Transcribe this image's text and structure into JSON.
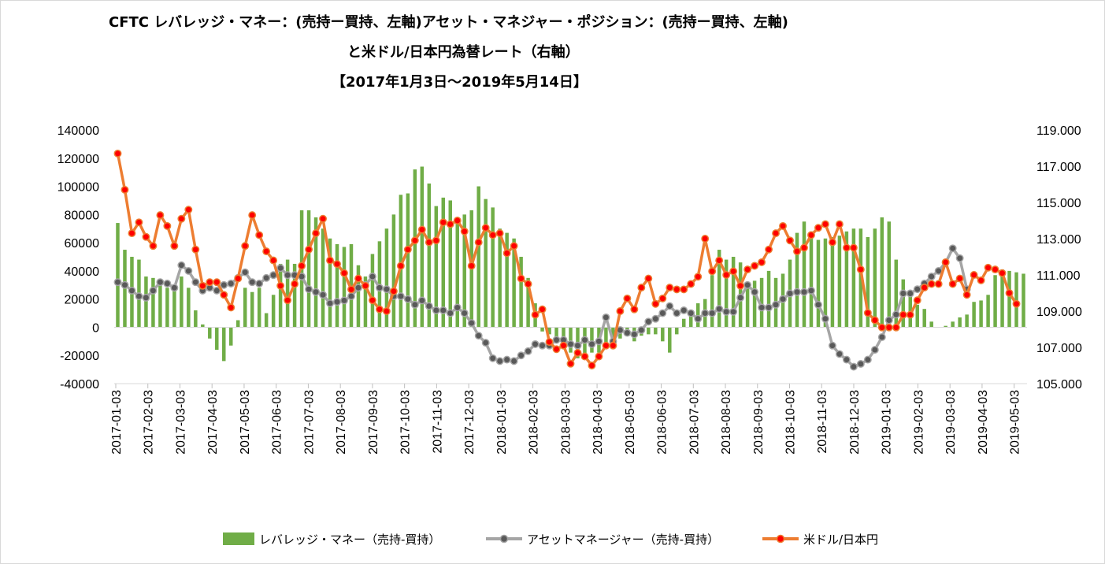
{
  "title": {
    "line1": "CFTC  レバレッジ・マネー：(売持ー買持、左軸)アセット・マネジャー・ポジション：(売持ー買持、左軸)",
    "line2": "と米ドル/日本円為替レート（右軸）",
    "line3": "【2017年1月3日～2019年5月14日】"
  },
  "legend": {
    "bars": "レバレッジ・マネー（売持-買持）",
    "gray": "アセットマネージャー（売持-買持）",
    "orange": "米ドル/日本円"
  },
  "colors": {
    "bars": "#70ad47",
    "gray_line": "#a5a5a5",
    "gray_marker": "#595959",
    "orange_line": "#ed7d31",
    "orange_marker": "#ff0000",
    "grid": "#d9d9d9"
  },
  "chart_data": {
    "type": "bar+line",
    "x_ticks": [
      "2017-01-03",
      "2017-02-03",
      "2017-03-03",
      "2017-04-03",
      "2017-05-03",
      "2017-06-03",
      "2017-07-03",
      "2017-08-03",
      "2017-09-03",
      "2017-10-03",
      "2017-11-03",
      "2017-12-03",
      "2018-01-03",
      "2018-02-03",
      "2018-03-03",
      "2018-04-03",
      "2018-05-03",
      "2018-06-03",
      "2018-07-03",
      "2018-08-03",
      "2018-09-03",
      "2018-10-03",
      "2018-11-03",
      "2018-12-03",
      "2019-01-03",
      "2019-02-03",
      "2019-03-03",
      "2019-04-03",
      "2019-05-03"
    ],
    "y_left": {
      "min": -40000,
      "max": 140000,
      "step": 20000
    },
    "y_right": {
      "min": 105,
      "max": 119,
      "step": 2,
      "labels": [
        "105.000",
        "107.000",
        "109.000",
        "111.000",
        "113.000",
        "115.000",
        "117.000",
        "119.000"
      ]
    },
    "series": [
      {
        "name": "レバレッジ・マネー（売持-買持）",
        "type": "bar",
        "axis": "left",
        "values": [
          74000,
          55000,
          50000,
          48000,
          36000,
          35000,
          30000,
          28000,
          28000,
          36000,
          28000,
          12000,
          2000,
          -8000,
          -16000,
          -24000,
          -13000,
          5000,
          28000,
          25000,
          28000,
          10000,
          23000,
          45000,
          48000,
          45000,
          83000,
          83000,
          78000,
          70000,
          63000,
          59000,
          57000,
          59000,
          44000,
          36000,
          52000,
          61000,
          70000,
          80000,
          94000,
          95000,
          112000,
          114000,
          102000,
          86000,
          92000,
          90000,
          78000,
          80000,
          83000,
          100000,
          91000,
          85000,
          70000,
          67000,
          63000,
          50000,
          35000,
          17000,
          -3000,
          -5000,
          -8000,
          -10000,
          -18000,
          -22000,
          -20000,
          -18000,
          -18000,
          -14000,
          -10000,
          -8000,
          -6000,
          -10000,
          -6000,
          -5000,
          -5000,
          -10000,
          -18000,
          -5000,
          6000,
          10000,
          17000,
          20000,
          37000,
          55000,
          48000,
          50000,
          46000,
          30000,
          33000,
          35000,
          40000,
          35000,
          38000,
          48000,
          67000,
          75000,
          68000,
          62000,
          63000,
          64000,
          65000,
          68000,
          70000,
          70000,
          64000,
          70000,
          78000,
          75000,
          48000,
          34000,
          22000,
          16000,
          13000,
          4000,
          0,
          1000,
          4000,
          7000,
          9000,
          18000,
          19000,
          23000,
          37000,
          41000,
          40000,
          39000,
          38000
        ]
      },
      {
        "name": "アセットマネージャー（売持-買持）",
        "type": "line",
        "axis": "left",
        "values": [
          32000,
          30000,
          26000,
          22000,
          21000,
          26000,
          32000,
          31000,
          28000,
          44000,
          40000,
          32000,
          26000,
          28000,
          26000,
          30000,
          31000,
          35000,
          39000,
          32000,
          31000,
          35000,
          37000,
          42000,
          37000,
          37000,
          36000,
          27000,
          25000,
          23000,
          17000,
          18000,
          19000,
          22000,
          28000,
          30000,
          36000,
          28000,
          27000,
          22000,
          22000,
          20000,
          16000,
          19000,
          15000,
          12000,
          12000,
          10000,
          14000,
          10000,
          3000,
          -6000,
          -11000,
          -22000,
          -24000,
          -23000,
          -24000,
          -20000,
          -17000,
          -12000,
          -13000,
          -13000,
          -9000,
          -9000,
          -12000,
          -13000,
          -9000,
          -12000,
          -10000,
          7000,
          -10000,
          -2000,
          -4000,
          -5000,
          -2000,
          4000,
          6000,
          10000,
          15000,
          10000,
          12000,
          10000,
          6000,
          10000,
          10000,
          13000,
          11000,
          11000,
          21000,
          30000,
          25000,
          14000,
          14000,
          16000,
          20000,
          24000,
          25000,
          25000,
          26000,
          16000,
          6000,
          -13000,
          -19000,
          -23000,
          -28000,
          -26000,
          -23000,
          -16000,
          -7000,
          5000,
          9000,
          24000,
          24000,
          27000,
          31000,
          36000,
          40000,
          46000,
          56000,
          49000,
          27000
        ]
      },
      {
        "name": "米ドル/日本円",
        "type": "line",
        "axis": "right",
        "values": [
          117.7,
          115.7,
          113.3,
          113.9,
          113.1,
          112.6,
          114.3,
          113.7,
          112.6,
          114.1,
          114.6,
          112.4,
          110.4,
          110.6,
          110.6,
          109.9,
          109.2,
          110.8,
          112.6,
          114.3,
          113.2,
          112.3,
          111.8,
          110.4,
          109.6,
          110.5,
          111.5,
          112.4,
          113.3,
          114.1,
          111.8,
          111.6,
          111.1,
          110.2,
          110.8,
          110.4,
          109.6,
          109.1,
          109.0,
          110.1,
          111.5,
          112.4,
          112.9,
          113.5,
          112.8,
          112.9,
          113.9,
          113.8,
          114.0,
          113.4,
          111.5,
          112.8,
          113.6,
          113.2,
          113.3,
          112.2,
          112.6,
          110.8,
          110.5,
          108.8,
          109.1,
          107.3,
          106.9,
          107.1,
          106.1,
          106.7,
          106.5,
          106.0,
          106.5,
          107.1,
          107.1,
          109.0,
          109.7,
          109.1,
          110.3,
          110.8,
          109.4,
          109.7,
          110.3,
          110.2,
          110.2,
          110.5,
          110.9,
          113.0,
          111.2,
          111.8,
          111.0,
          111.2,
          110.4,
          111.3,
          111.5,
          111.7,
          112.4,
          113.3,
          113.7,
          112.9,
          112.3,
          112.5,
          113.2,
          113.6,
          113.8,
          112.8,
          113.8,
          112.5,
          112.5,
          111.3,
          108.9,
          108.5,
          108.1,
          108.1,
          108.1,
          108.8,
          108.8,
          109.6,
          110.3,
          110.5,
          110.5,
          111.7,
          110.5,
          110.8,
          109.9,
          111.0,
          110.7,
          111.4,
          111.3,
          111.1,
          110.0,
          109.4
        ]
      }
    ]
  }
}
